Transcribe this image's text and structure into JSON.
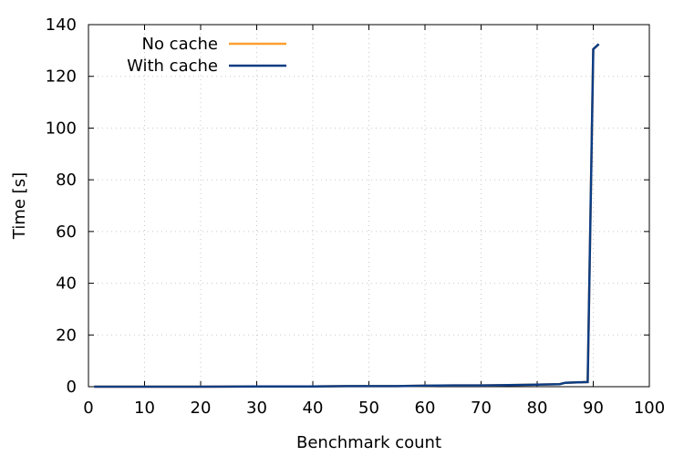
{
  "chart_data": {
    "type": "line",
    "title": "",
    "xlabel": "Benchmark count",
    "ylabel": "Time [s]",
    "xlim": [
      0,
      100
    ],
    "ylim": [
      0,
      140
    ],
    "xticks": [
      0,
      10,
      20,
      30,
      40,
      50,
      60,
      70,
      80,
      90,
      100
    ],
    "yticks": [
      0,
      20,
      40,
      60,
      80,
      100,
      120,
      140
    ],
    "grid": true,
    "legend_position": "top-left",
    "series": [
      {
        "name": "No cache",
        "color": "#ff9f2e",
        "x": [
          1,
          10,
          20,
          30,
          40,
          46,
          50,
          55,
          60,
          65,
          70,
          75,
          80,
          84,
          85,
          89,
          90,
          91
        ],
        "y": [
          0,
          0,
          0,
          0.1,
          0.1,
          0.2,
          0.2,
          0.2,
          0.4,
          0.5,
          0.5,
          0.6,
          0.8,
          1.0,
          1.5,
          1.8,
          130.5,
          132.5
        ]
      },
      {
        "name": "With cache",
        "color": "#0c3c84",
        "x": [
          1,
          10,
          20,
          30,
          40,
          46,
          50,
          55,
          60,
          65,
          70,
          75,
          80,
          84,
          85,
          89,
          90,
          91
        ],
        "y": [
          0,
          0,
          0,
          0.1,
          0.1,
          0.2,
          0.2,
          0.2,
          0.4,
          0.5,
          0.5,
          0.6,
          0.8,
          1.0,
          1.5,
          1.8,
          130.5,
          132.5
        ]
      }
    ]
  }
}
